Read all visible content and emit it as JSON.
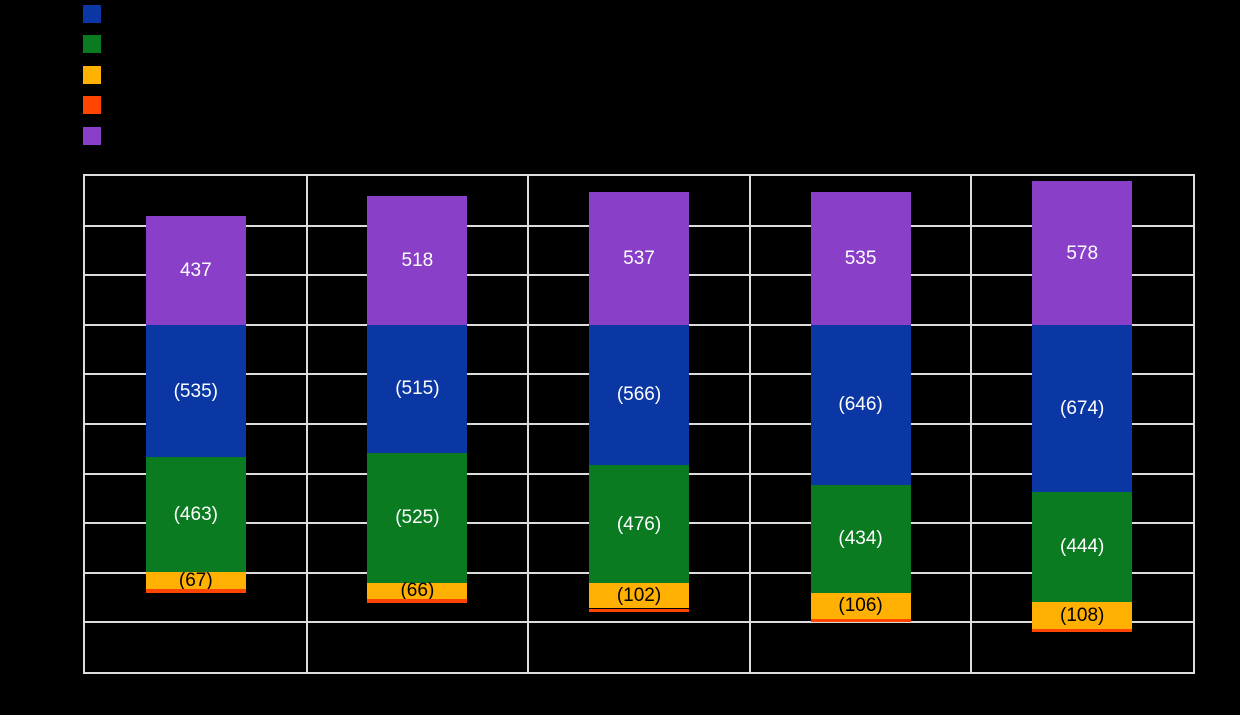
{
  "figure": {
    "background_color": "#000000",
    "note": "All axis tick labels, legend text, chart title and category labels are rendered in black on a black background and are not visible."
  },
  "legend": {
    "position": "top-left",
    "items": [
      {
        "name": "series-blue",
        "color": "#0B37A4",
        "label": ""
      },
      {
        "name": "series-green",
        "color": "#0A7B21",
        "label": ""
      },
      {
        "name": "series-orange",
        "color": "#FFB000",
        "label": ""
      },
      {
        "name": "series-red",
        "color": "#FF4500",
        "label": ""
      },
      {
        "name": "series-purple",
        "color": "#8A3FC8",
        "label": ""
      }
    ]
  },
  "chart_data": {
    "type": "bar",
    "stacked": true,
    "title": "",
    "xlabel": "",
    "ylabel": "",
    "categories": [
      "",
      "",
      "",
      "",
      ""
    ],
    "ylim": [
      -1400,
      600
    ],
    "ytick_step": 200,
    "grid": true,
    "grid_color": "#DCDCDC",
    "legend_position": "top-left",
    "series": [
      {
        "name": "series-blue",
        "color": "#0B37A4",
        "values": [
          -535,
          -515,
          -566,
          -646,
          -674
        ],
        "labels": [
          "(535)",
          "(515)",
          "(566)",
          "(646)",
          "(674)"
        ],
        "label_color": "#FFFFFF"
      },
      {
        "name": "series-green",
        "color": "#0A7B21",
        "values": [
          -463,
          -525,
          -476,
          -434,
          -444
        ],
        "labels": [
          "(463)",
          "(525)",
          "(476)",
          "(434)",
          "(444)"
        ],
        "label_color": "#FFFFFF"
      },
      {
        "name": "series-orange",
        "color": "#FFB000",
        "values": [
          -67,
          -66,
          -102,
          -106,
          -108
        ],
        "labels": [
          "(67)",
          "(66)",
          "(102)",
          "(106)",
          "(108)"
        ],
        "label_color": "#000000"
      },
      {
        "name": "series-red",
        "color": "#FF4500",
        "values": [
          -15,
          -14,
          -16,
          -12,
          -14
        ],
        "values_estimated_from_pixels": true,
        "labels": [
          "",
          "",
          "",
          "",
          ""
        ],
        "label_color": "#000000"
      },
      {
        "name": "series-purple",
        "color": "#8A3FC8",
        "values": [
          437,
          518,
          537,
          535,
          578
        ],
        "labels": [
          "437",
          "518",
          "537",
          "535",
          "578"
        ],
        "label_color": "#FFFFFF"
      }
    ]
  }
}
